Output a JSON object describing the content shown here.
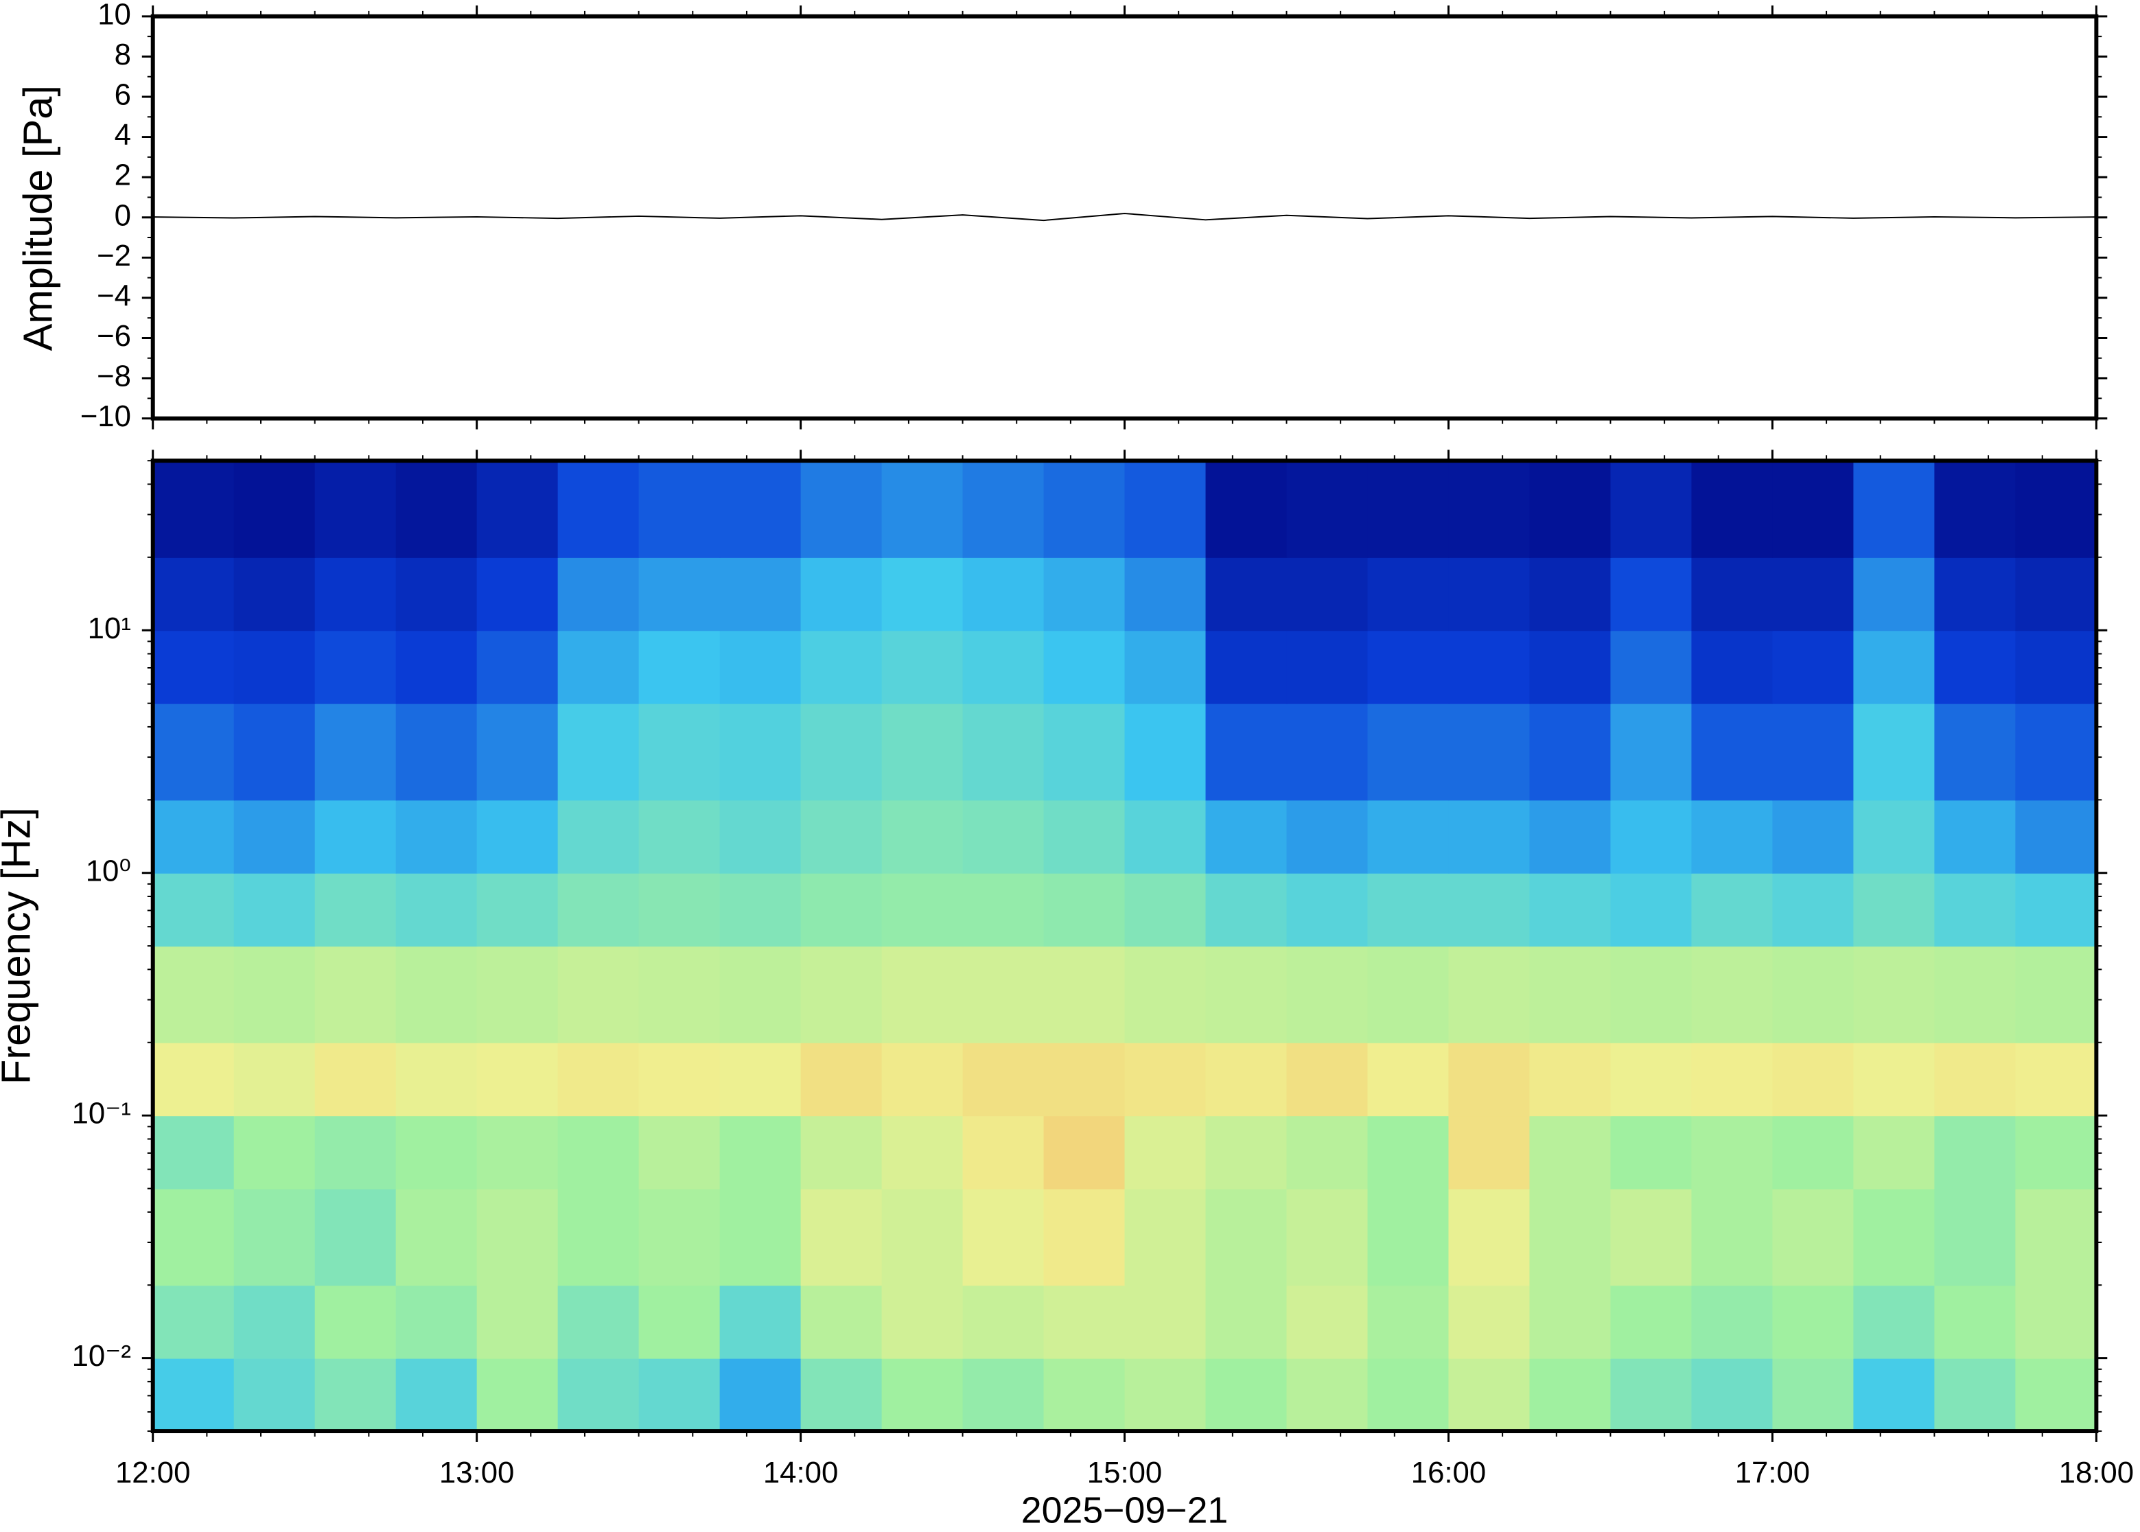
{
  "chart_data": [
    {
      "type": "line",
      "ylabel": "Amplitude [Pa]",
      "color": "#000000",
      "x": [
        12,
        12.25,
        12.5,
        12.75,
        13,
        13.25,
        13.5,
        13.75,
        14,
        14.25,
        14.5,
        14.75,
        15,
        15.25,
        15.5,
        15.75,
        16,
        16.25,
        16.5,
        16.75,
        17,
        17.25,
        17.5,
        17.75,
        18
      ],
      "values": [
        0.02,
        -0.03,
        0.04,
        -0.02,
        0.03,
        -0.05,
        0.06,
        -0.04,
        0.08,
        -0.1,
        0.12,
        -0.15,
        0.2,
        -0.12,
        0.1,
        -0.06,
        0.08,
        -0.05,
        0.04,
        -0.03,
        0.05,
        -0.04,
        0.03,
        -0.02,
        0.02
      ],
      "xlim": [
        12,
        18
      ],
      "ylim": [
        -10,
        10
      ],
      "yticks": [
        {
          "value": -10,
          "label": "−10"
        },
        {
          "value": -8,
          "label": "−8"
        },
        {
          "value": -6,
          "label": "−6"
        },
        {
          "value": -4,
          "label": "−4"
        },
        {
          "value": -2,
          "label": "−2"
        },
        0,
        2,
        4,
        6,
        8,
        10
      ]
    },
    {
      "type": "heatmap",
      "ylabel": "Frequency [Hz]",
      "xlabel": "2025−09−21",
      "log_y": true,
      "xbins": [
        12,
        12.25,
        12.5,
        12.75,
        13,
        13.25,
        13.5,
        13.75,
        14,
        14.25,
        14.5,
        14.75,
        15,
        15.25,
        15.5,
        15.75,
        16,
        16.25,
        16.5,
        16.75,
        17,
        17.25,
        17.5,
        17.75,
        18
      ],
      "ybins": [
        0.005,
        0.01,
        0.02,
        0.05,
        0.1,
        0.2,
        0.5,
        1,
        2,
        5,
        10,
        20,
        50
      ],
      "z": [
        [
          0.35,
          0.4,
          0.45,
          0.38,
          0.5,
          0.42,
          0.4,
          0.3,
          0.45,
          0.5,
          0.48,
          0.52,
          0.55,
          0.5,
          0.55,
          0.5,
          0.58,
          0.5,
          0.45,
          0.42,
          0.48,
          0.35,
          0.45,
          0.5
        ],
        [
          0.45,
          0.42,
          0.5,
          0.48,
          0.55,
          0.45,
          0.5,
          0.4,
          0.55,
          0.6,
          0.58,
          0.6,
          0.6,
          0.55,
          0.6,
          0.52,
          0.62,
          0.55,
          0.5,
          0.48,
          0.5,
          0.45,
          0.5,
          0.55
        ],
        [
          0.5,
          0.48,
          0.45,
          0.52,
          0.55,
          0.5,
          0.52,
          0.5,
          0.62,
          0.6,
          0.65,
          0.68,
          0.6,
          0.55,
          0.58,
          0.5,
          0.65,
          0.55,
          0.58,
          0.52,
          0.55,
          0.5,
          0.48,
          0.55
        ],
        [
          0.45,
          0.5,
          0.48,
          0.5,
          0.52,
          0.5,
          0.55,
          0.5,
          0.58,
          0.62,
          0.68,
          0.72,
          0.62,
          0.58,
          0.55,
          0.5,
          0.7,
          0.55,
          0.5,
          0.52,
          0.5,
          0.55,
          0.48,
          0.5
        ],
        [
          0.66,
          0.64,
          0.68,
          0.65,
          0.66,
          0.68,
          0.67,
          0.66,
          0.7,
          0.68,
          0.7,
          0.7,
          0.69,
          0.68,
          0.7,
          0.67,
          0.7,
          0.68,
          0.66,
          0.67,
          0.68,
          0.66,
          0.68,
          0.67
        ],
        [
          0.56,
          0.55,
          0.57,
          0.55,
          0.56,
          0.58,
          0.57,
          0.56,
          0.58,
          0.6,
          0.6,
          0.6,
          0.58,
          0.57,
          0.56,
          0.55,
          0.57,
          0.56,
          0.55,
          0.56,
          0.55,
          0.56,
          0.55,
          0.54
        ],
        [
          0.4,
          0.38,
          0.42,
          0.4,
          0.42,
          0.45,
          0.46,
          0.45,
          0.47,
          0.48,
          0.48,
          0.47,
          0.45,
          0.4,
          0.38,
          0.4,
          0.4,
          0.38,
          0.36,
          0.4,
          0.38,
          0.42,
          0.38,
          0.36
        ],
        [
          0.3,
          0.28,
          0.32,
          0.3,
          0.32,
          0.4,
          0.42,
          0.4,
          0.43,
          0.45,
          0.44,
          0.42,
          0.38,
          0.3,
          0.28,
          0.3,
          0.3,
          0.28,
          0.32,
          0.3,
          0.28,
          0.38,
          0.3,
          0.26
        ],
        [
          0.22,
          0.2,
          0.25,
          0.22,
          0.25,
          0.35,
          0.38,
          0.37,
          0.4,
          0.42,
          0.4,
          0.38,
          0.33,
          0.2,
          0.2,
          0.22,
          0.22,
          0.2,
          0.28,
          0.2,
          0.2,
          0.35,
          0.22,
          0.2
        ],
        [
          0.16,
          0.15,
          0.18,
          0.16,
          0.2,
          0.3,
          0.33,
          0.32,
          0.36,
          0.38,
          0.36,
          0.33,
          0.3,
          0.14,
          0.14,
          0.16,
          0.16,
          0.14,
          0.22,
          0.14,
          0.15,
          0.3,
          0.16,
          0.14
        ],
        [
          0.12,
          0.1,
          0.14,
          0.12,
          0.16,
          0.26,
          0.28,
          0.28,
          0.32,
          0.34,
          0.32,
          0.3,
          0.26,
          0.1,
          0.1,
          0.12,
          0.12,
          0.1,
          0.18,
          0.1,
          0.1,
          0.26,
          0.12,
          0.1
        ],
        [
          0.06,
          0.05,
          0.08,
          0.06,
          0.1,
          0.18,
          0.2,
          0.2,
          0.24,
          0.26,
          0.24,
          0.22,
          0.2,
          0.05,
          0.06,
          0.06,
          0.06,
          0.05,
          0.1,
          0.05,
          0.05,
          0.2,
          0.06,
          0.05
        ]
      ],
      "colormap": [
        "#00007a",
        "#0a3fd9",
        "#3cc8f0",
        "#a0f0a0",
        "#f0f090",
        "#f5a050",
        "#e04020"
      ],
      "xlim": [
        12,
        18
      ],
      "ylim": [
        0.005,
        50
      ],
      "xticks": [
        {
          "value": 12,
          "label": "12:00"
        },
        {
          "value": 13,
          "label": "13:00"
        },
        {
          "value": 14,
          "label": "14:00"
        },
        {
          "value": 15,
          "label": "15:00"
        },
        {
          "value": 16,
          "label": "16:00"
        },
        {
          "value": 17,
          "label": "17:00"
        },
        {
          "value": 18,
          "label": "18:00"
        }
      ],
      "yticks": [
        {
          "value": 0.01,
          "label": "10⁻²"
        },
        {
          "value": 0.1,
          "label": "10⁻¹"
        },
        {
          "value": 1,
          "label": "10⁰"
        },
        {
          "value": 10,
          "label": "10¹"
        }
      ]
    }
  ]
}
